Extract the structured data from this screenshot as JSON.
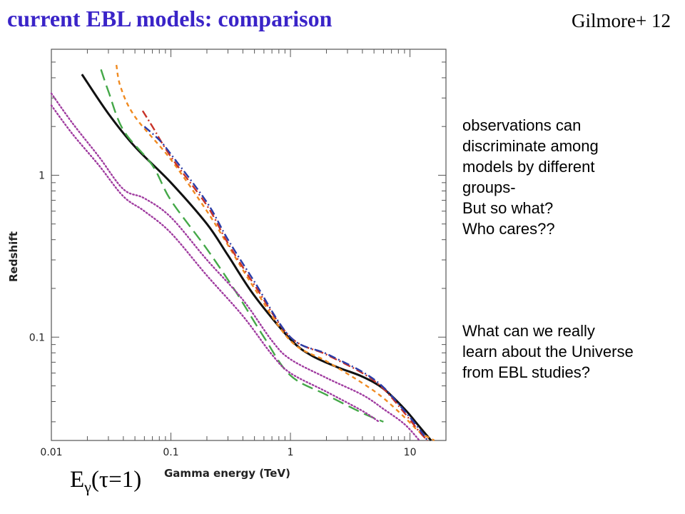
{
  "slide": {
    "title": "current EBL models: comparison",
    "credit": "Gilmore+ 12",
    "notes_top": [
      "observations can",
      "discriminate among",
      "models by different",
      "groups-",
      "But so what?",
      "Who cares??"
    ],
    "notes_bottom": [
      "What can we really",
      "learn about the Universe",
      "from EBL studies?"
    ],
    "energy_label": {
      "main": "E",
      "sub": "γ",
      "paren": "(τ=1)"
    }
  },
  "chart_data": {
    "type": "line",
    "xlabel": "Gamma energy (TeV)",
    "ylabel": "Redshift",
    "x_scale": "log",
    "y_scale": "log",
    "xlim": [
      0.01,
      20
    ],
    "ylim": [
      0.023,
      6
    ],
    "x_ticks": [
      {
        "value": 0.01,
        "label": "0.01"
      },
      {
        "value": 0.1,
        "label": "0.1"
      },
      {
        "value": 1,
        "label": "1"
      },
      {
        "value": 10,
        "label": "10"
      }
    ],
    "y_ticks": [
      {
        "value": 0.1,
        "label": "0.1"
      },
      {
        "value": 1,
        "label": "1"
      }
    ],
    "grid": false,
    "legend": "none",
    "series": [
      {
        "style": "solid",
        "color": "#111111",
        "points": [
          [
            0.018,
            4.2
          ],
          [
            0.03,
            2.4
          ],
          [
            0.05,
            1.5
          ],
          [
            0.1,
            0.9
          ],
          [
            0.2,
            0.5
          ],
          [
            0.3,
            0.32
          ],
          [
            0.5,
            0.18
          ],
          [
            1.0,
            0.097
          ],
          [
            1.5,
            0.077
          ],
          [
            2.5,
            0.065
          ],
          [
            4.0,
            0.057
          ],
          [
            6.0,
            0.048
          ],
          [
            9.0,
            0.036
          ],
          [
            12.0,
            0.028
          ],
          [
            15.0,
            0.023
          ]
        ]
      },
      {
        "style": "long-dash",
        "color": "#44a848",
        "points": [
          [
            0.026,
            4.5
          ],
          [
            0.03,
            3.3
          ],
          [
            0.04,
            1.9
          ],
          [
            0.07,
            1.15
          ],
          [
            0.1,
            0.7
          ],
          [
            0.2,
            0.35
          ],
          [
            0.35,
            0.19
          ],
          [
            0.6,
            0.1
          ],
          [
            1.0,
            0.058
          ],
          [
            2.0,
            0.044
          ],
          [
            4.0,
            0.034
          ],
          [
            6.0,
            0.03
          ]
        ]
      },
      {
        "style": "short-dash",
        "color": "#f08a20",
        "points": [
          [
            0.035,
            4.8
          ],
          [
            0.038,
            3.5
          ],
          [
            0.05,
            2.3
          ],
          [
            0.1,
            1.25
          ],
          [
            0.2,
            0.6
          ],
          [
            0.3,
            0.37
          ],
          [
            0.5,
            0.2
          ],
          [
            1.0,
            0.095
          ],
          [
            2.0,
            0.071
          ],
          [
            4.0,
            0.052
          ],
          [
            6.0,
            0.042
          ],
          [
            9.0,
            0.032
          ],
          [
            12.0,
            0.026
          ],
          [
            16.0,
            0.023
          ]
        ]
      },
      {
        "style": "dash-dot",
        "color": "#c83228",
        "points": [
          [
            0.058,
            2.5
          ],
          [
            0.07,
            2.0
          ],
          [
            0.1,
            1.3
          ],
          [
            0.2,
            0.65
          ],
          [
            0.3,
            0.38
          ],
          [
            0.5,
            0.21
          ],
          [
            1.0,
            0.1
          ],
          [
            2.0,
            0.078
          ],
          [
            4.0,
            0.06
          ],
          [
            6.0,
            0.048
          ],
          [
            9.0,
            0.034
          ],
          [
            12.0,
            0.026
          ],
          [
            14.0,
            0.023
          ]
        ]
      },
      {
        "style": "dash-dot",
        "color": "#2a3ca8",
        "points": [
          [
            0.06,
            2.0
          ],
          [
            0.08,
            1.65
          ],
          [
            0.1,
            1.35
          ],
          [
            0.2,
            0.68
          ],
          [
            0.3,
            0.4
          ],
          [
            0.5,
            0.22
          ],
          [
            1.0,
            0.1
          ],
          [
            2.0,
            0.079
          ],
          [
            4.0,
            0.061
          ],
          [
            6.0,
            0.049
          ],
          [
            9.0,
            0.035
          ],
          [
            12.0,
            0.027
          ],
          [
            14.0,
            0.023
          ]
        ]
      },
      {
        "style": "dotted",
        "color": "#a03ca0",
        "points": [
          [
            0.01,
            3.2
          ],
          [
            0.015,
            2.1
          ],
          [
            0.025,
            1.3
          ],
          [
            0.04,
            0.82
          ],
          [
            0.06,
            0.72
          ],
          [
            0.1,
            0.55
          ],
          [
            0.2,
            0.3
          ],
          [
            0.4,
            0.17
          ],
          [
            0.7,
            0.095
          ],
          [
            1.0,
            0.073
          ],
          [
            2.0,
            0.056
          ],
          [
            4.0,
            0.044
          ],
          [
            6.0,
            0.036
          ],
          [
            9.0,
            0.029
          ],
          [
            12.0,
            0.023
          ]
        ]
      },
      {
        "style": "dotted",
        "color": "#a03ca0",
        "points": [
          [
            0.01,
            2.7
          ],
          [
            0.015,
            1.8
          ],
          [
            0.025,
            1.15
          ],
          [
            0.04,
            0.74
          ],
          [
            0.06,
            0.6
          ],
          [
            0.1,
            0.44
          ],
          [
            0.2,
            0.24
          ],
          [
            0.4,
            0.135
          ],
          [
            0.7,
            0.078
          ],
          [
            1.0,
            0.06
          ],
          [
            2.0,
            0.046
          ],
          [
            4.0,
            0.035
          ],
          [
            5.5,
            0.03
          ]
        ]
      }
    ]
  }
}
